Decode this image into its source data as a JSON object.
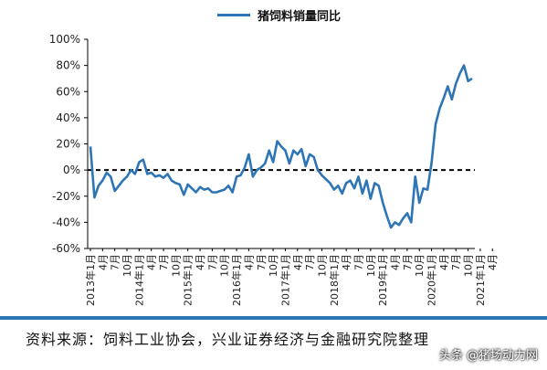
{
  "legend": {
    "label": "猪饲料销量同比"
  },
  "source": "资料来源：饲料工业协会，兴业证券经济与金融研究院整理",
  "watermark": "头条 @猪场动力网",
  "colors": {
    "series": "#2E75B6",
    "axis": "#000000",
    "zero_line": "#000000"
  },
  "chart_data": {
    "type": "line",
    "title": "",
    "xlabel": "",
    "ylabel": "",
    "ylim": [
      -60,
      100
    ],
    "y_ticks": [
      "100%",
      "80%",
      "60%",
      "40%",
      "20%",
      "0%",
      "-20%",
      "-40%",
      "-60%"
    ],
    "y_tick_values": [
      100,
      80,
      60,
      40,
      20,
      0,
      -20,
      -40,
      -60
    ],
    "x_tick_labels": [
      "2013年1月",
      "4月",
      "7月",
      "10月",
      "2014年1月",
      "4月",
      "7月",
      "10月",
      "2015年1月",
      "4月",
      "7月",
      "10月",
      "2016年1月",
      "4月",
      "7月",
      "10月",
      "2017年1月",
      "4月",
      "7月",
      "10月",
      "2018年1月",
      "4月",
      "7月",
      "10月",
      "2019年1月",
      "4月",
      "7月",
      "10月",
      "2020年1月",
      "4月",
      "7月",
      "10月",
      "2021年1月",
      "4月"
    ],
    "grid": false,
    "reference_line": {
      "y": 0,
      "style": "dashed"
    },
    "series": [
      {
        "name": "猪饲料销量同比",
        "values": [
          18,
          -21,
          -12,
          -8,
          -2,
          -5,
          -16,
          -12,
          -8,
          -5,
          0,
          -3,
          6,
          8,
          -3,
          -2,
          -5,
          -4,
          -6,
          -3,
          -8,
          -10,
          -11,
          -19,
          -11,
          -14,
          -17,
          -13,
          -15,
          -14,
          -17,
          -17,
          -16,
          -15,
          -12,
          -17,
          -5,
          -4,
          2,
          12,
          -5,
          0,
          2,
          5,
          15,
          6,
          22,
          18,
          15,
          5,
          15,
          12,
          16,
          3,
          12,
          10,
          0,
          -4,
          -7,
          -10,
          -15,
          -12,
          -18,
          -10,
          -8,
          -14,
          -5,
          -18,
          -8,
          -22,
          -10,
          -12,
          -25,
          -35,
          -44,
          -40,
          -42,
          -37,
          -33,
          -40,
          -5,
          -25,
          -14,
          -15,
          5,
          35,
          47,
          55,
          64,
          54,
          66,
          74,
          80,
          68,
          70
        ]
      }
    ]
  }
}
